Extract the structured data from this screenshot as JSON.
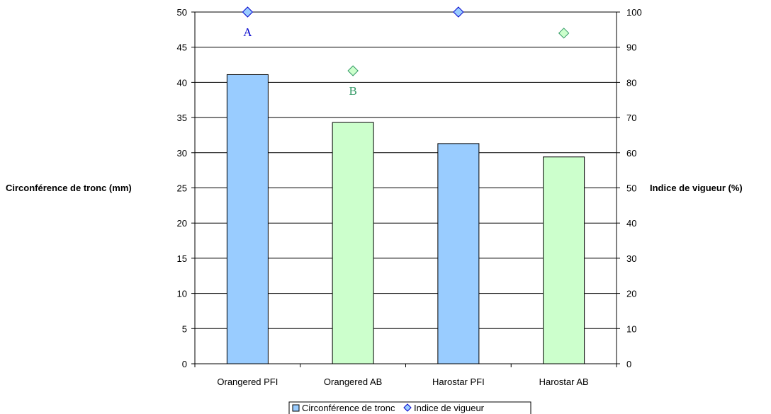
{
  "chart_data": {
    "type": "bar",
    "categories": [
      "Orangered PFI",
      "Orangered AB",
      "Harostar PFI",
      "Harostar AB"
    ],
    "series": [
      {
        "name": "Circonférence de tronc",
        "type": "bar",
        "axis": "left",
        "values": [
          41.1,
          34.3,
          31.3,
          29.4
        ],
        "colors": [
          "#99CCFF",
          "#CCFFCC",
          "#99CCFF",
          "#CCFFCC"
        ]
      },
      {
        "name": "Indice de vigueur",
        "type": "scatter",
        "axis": "right",
        "values": [
          100,
          83.3,
          100,
          94
        ],
        "colors": [
          "#99CCFF",
          "#CCFFCC",
          "#99CCFF",
          "#CCFFCC"
        ]
      }
    ],
    "ylabel_left": "Circonférence de tronc (mm)",
    "ylabel_right": "Indice de vigueur (%)",
    "ylim_left": [
      0,
      50
    ],
    "ylim_right": [
      0,
      100
    ],
    "yticks_left": [
      "0",
      "5",
      "10",
      "15",
      "20",
      "25",
      "30",
      "35",
      "40",
      "45",
      "50"
    ],
    "yticks_right": [
      "0",
      "10",
      "20",
      "30",
      "40",
      "50",
      "60",
      "70",
      "80",
      "90",
      "100"
    ],
    "grid": true,
    "legend_position": "bottom",
    "annotations": [
      {
        "text": "A",
        "category": 0,
        "color": "#0000CC"
      },
      {
        "text": "B",
        "category": 1,
        "color": "#339966"
      }
    ]
  }
}
